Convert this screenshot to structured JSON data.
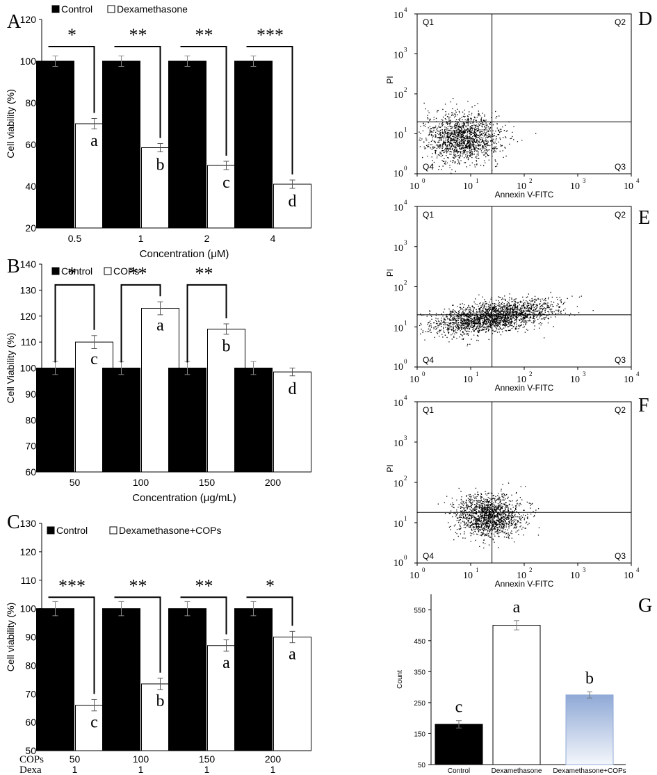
{
  "chart_data": [
    {
      "panel": "A",
      "type": "bar",
      "categories": [
        "0.5",
        "1",
        "2",
        "4"
      ],
      "series": [
        {
          "name": "Control",
          "values": [
            100,
            100,
            100,
            100
          ],
          "errors": [
            2.5,
            2.5,
            2.5,
            2.5
          ],
          "color": "#000000"
        },
        {
          "name": "Dexamethasone",
          "values": [
            70,
            58.5,
            50,
            41
          ],
          "errors": [
            2.5,
            2,
            2,
            2
          ],
          "color": "#ffffff"
        }
      ],
      "letters": [
        "a",
        "b",
        "c",
        "d"
      ],
      "significance": [
        "*",
        "**",
        "**",
        "***"
      ],
      "xlabel": "Concentration (μM)",
      "ylabel": "Cell viability (%)",
      "ylim": [
        20,
        120
      ],
      "yticks": [
        20,
        40,
        60,
        80,
        100,
        120
      ],
      "legend_position": "top-left"
    },
    {
      "panel": "B",
      "type": "bar",
      "categories": [
        "50",
        "100",
        "150",
        "200"
      ],
      "series": [
        {
          "name": "Control",
          "values": [
            100,
            100,
            100,
            100
          ],
          "errors": [
            2.5,
            2.5,
            2.5,
            2.5
          ],
          "color": "#000000"
        },
        {
          "name": "COPs",
          "values": [
            110,
            123,
            115,
            98.5
          ],
          "errors": [
            2.5,
            2.5,
            2,
            1.5
          ],
          "color": "#ffffff"
        }
      ],
      "letters": [
        "c",
        "a",
        "b",
        "d"
      ],
      "significance": [
        "*",
        "**",
        "**",
        ""
      ],
      "xlabel": "Concentration (μg/mL)",
      "ylabel": "Cell Viability (%)",
      "ylim": [
        60,
        140
      ],
      "yticks": [
        60,
        70,
        80,
        90,
        100,
        110,
        120,
        130,
        140
      ],
      "legend_position": "top-left"
    },
    {
      "panel": "C",
      "type": "bar",
      "categories": [
        "50",
        "100",
        "150",
        "200"
      ],
      "row_labels": [
        "COPs",
        "Dexa"
      ],
      "row2_values": [
        "1",
        "1",
        "1",
        "1"
      ],
      "series": [
        {
          "name": "Control",
          "values": [
            100,
            100,
            100,
            100
          ],
          "errors": [
            2.5,
            2.5,
            2.5,
            2.5
          ],
          "color": "#000000"
        },
        {
          "name": "Dexamethasone+COPs",
          "values": [
            66,
            73.5,
            87,
            90
          ],
          "errors": [
            2,
            2,
            2,
            2
          ],
          "color": "#ffffff"
        }
      ],
      "letters": [
        "c",
        "b",
        "a",
        "a"
      ],
      "significance": [
        "***",
        "**",
        "**",
        "*"
      ],
      "xlabel": "",
      "ylabel": "Cell viability (%)",
      "ylim": [
        50,
        130
      ],
      "yticks": [
        50,
        60,
        70,
        80,
        90,
        100,
        110,
        120,
        130
      ],
      "legend_position": "top-left"
    },
    {
      "panel": "D",
      "type": "scatter",
      "xscale": "log",
      "yscale": "log",
      "xlim": [
        1,
        10000
      ],
      "ylim": [
        1,
        10000
      ],
      "xticks": [
        "10",
        "10",
        "10",
        "10",
        "10"
      ],
      "xtick_exps": [
        "0",
        "1",
        "2",
        "3",
        "4"
      ],
      "xlabel": "Annexin V-FITC",
      "ylabel": "PI",
      "quadrants": [
        "Q1",
        "Q2",
        "Q3",
        "Q4"
      ],
      "gate_x": 25,
      "gate_y": 20,
      "cluster": {
        "center_x": 7,
        "center_y": 8,
        "spread_x": 0.35,
        "spread_y": 0.3,
        "count": 1500
      }
    },
    {
      "panel": "E",
      "type": "scatter",
      "xscale": "log",
      "yscale": "log",
      "xlim": [
        1,
        10000
      ],
      "ylim": [
        1,
        10000
      ],
      "xlabel": "Annexin V-FITC",
      "ylabel": "PI",
      "quadrants": [
        "Q1",
        "Q2",
        "Q3",
        "Q4"
      ],
      "gate_x": 25,
      "gate_y": 20,
      "cluster": {
        "center_x": 25,
        "center_y": 18,
        "spread_x": 0.55,
        "spread_y": 0.18,
        "count": 2200,
        "tilt": 0.18
      }
    },
    {
      "panel": "F",
      "type": "scatter",
      "xscale": "log",
      "yscale": "log",
      "xlim": [
        1,
        10000
      ],
      "ylim": [
        1,
        10000
      ],
      "xlabel": "Annexin V-FITC",
      "ylabel": "PI",
      "quadrants": [
        "Q1",
        "Q2",
        "Q3",
        "Q4"
      ],
      "gate_x": 25,
      "gate_y": 18,
      "cluster": {
        "center_x": 22,
        "center_y": 15,
        "spread_x": 0.3,
        "spread_y": 0.25,
        "count": 1500
      }
    },
    {
      "panel": "G",
      "type": "bar",
      "categories": [
        "Control",
        "Dexamethasone",
        "Dexamethasone+COPs"
      ],
      "values": [
        180,
        500,
        275
      ],
      "errors": [
        12,
        15,
        10
      ],
      "letters": [
        "c",
        "a",
        "b"
      ],
      "colors": [
        "#000000",
        "#ffffff",
        "gradient-blue"
      ],
      "xlabel": "",
      "ylabel": "Count",
      "ylim": [
        50,
        600
      ],
      "yticks": [
        50,
        150,
        250,
        350,
        450,
        550
      ]
    }
  ]
}
